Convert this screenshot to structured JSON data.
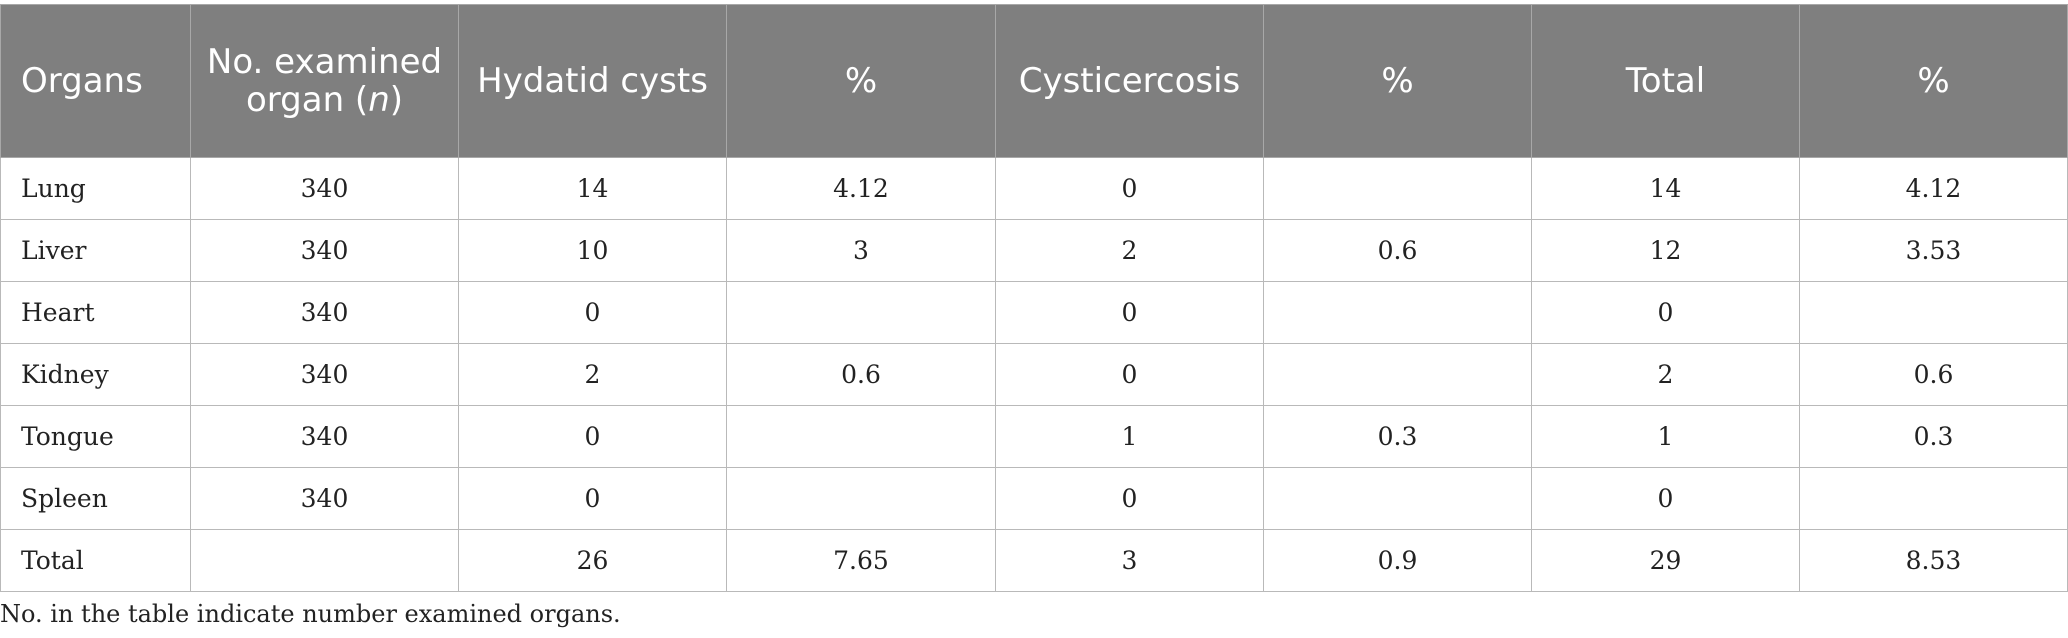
{
  "table": {
    "headers": [
      {
        "text": "Organs"
      },
      {
        "pre": "No. examined organ (",
        "italic": "n",
        "post": ")"
      },
      {
        "text": "Hydatid cysts"
      },
      {
        "text": "%"
      },
      {
        "text": "Cysticercosis"
      },
      {
        "text": "%"
      },
      {
        "text": "Total"
      },
      {
        "text": "%"
      }
    ],
    "rows": [
      [
        "Lung",
        "340",
        "14",
        "4.12",
        "0",
        "",
        "14",
        "4.12"
      ],
      [
        "Liver",
        "340",
        "10",
        "3",
        "2",
        "0.6",
        "12",
        "3.53"
      ],
      [
        "Heart",
        "340",
        "0",
        "",
        "0",
        "",
        "0",
        ""
      ],
      [
        "Kidney",
        "340",
        "2",
        "0.6",
        "0",
        "",
        "2",
        "0.6"
      ],
      [
        "Tongue",
        "340",
        "0",
        "",
        "1",
        "0.3",
        "1",
        "0.3"
      ],
      [
        "Spleen",
        "340",
        "0",
        "",
        "0",
        "",
        "0",
        ""
      ],
      [
        "Total",
        "",
        "26",
        "7.65",
        "3",
        "0.9",
        "29",
        "8.53"
      ]
    ]
  },
  "footnote": "No. in the table indicate number examined organs.",
  "colors": {
    "header_bg": "#7f7f7f",
    "header_text": "#ffffff",
    "border": "#b9b9b9"
  }
}
